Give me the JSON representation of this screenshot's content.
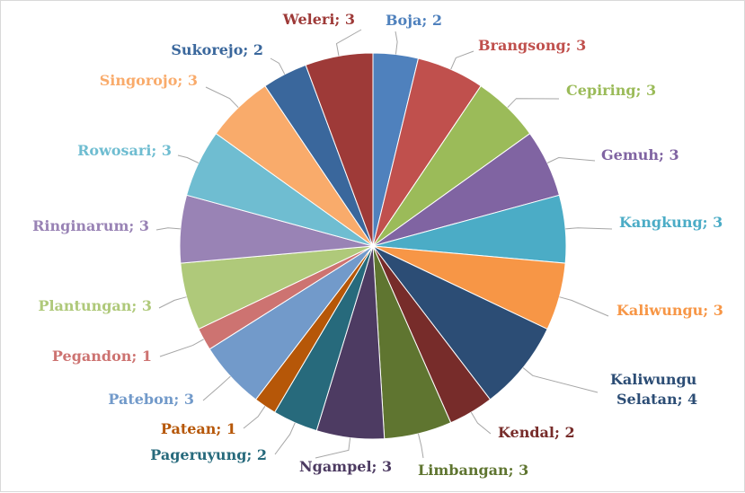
{
  "chart_data": {
    "type": "pie",
    "title": "",
    "slices": [
      {
        "category": "Boja",
        "value": 2,
        "label": "Boja; 2",
        "color": "#4F81BD"
      },
      {
        "category": "Brangsong",
        "value": 3,
        "label": "Brangsong; 3",
        "color": "#C0504D"
      },
      {
        "category": "Cepiring",
        "value": 3,
        "label": "Cepiring; 3",
        "color": "#9BBB59"
      },
      {
        "category": "Gemuh",
        "value": 3,
        "label": "Gemuh; 3",
        "color": "#8064A2"
      },
      {
        "category": "Kangkung",
        "value": 3,
        "label": "Kangkung; 3",
        "color": "#4BACC6"
      },
      {
        "category": "Kaliwungu",
        "value": 3,
        "label": "Kaliwungu; 3",
        "color": "#F79646"
      },
      {
        "category": "Kaliwungu Selatan",
        "value": 4,
        "label": [
          "Kaliwungu",
          "Selatan; 4"
        ],
        "color": "#2C4D75"
      },
      {
        "category": "Kendal",
        "value": 2,
        "label": "Kendal; 2",
        "color": "#772C2A"
      },
      {
        "category": "Limbangan",
        "value": 3,
        "label": "Limbangan; 3",
        "color": "#5F7530"
      },
      {
        "category": "Ngampel",
        "value": 3,
        "label": "Ngampel; 3",
        "color": "#4D3B62"
      },
      {
        "category": "Pageruyung",
        "value": 2,
        "label": "Pageruyung; 2",
        "color": "#276A7C"
      },
      {
        "category": "Patean",
        "value": 1,
        "label": "Patean; 1",
        "color": "#B65708"
      },
      {
        "category": "Patebon",
        "value": 3,
        "label": "Patebon; 3",
        "color": "#729ACA"
      },
      {
        "category": "Pegandon",
        "value": 1,
        "label": "Pegandon; 1",
        "color": "#CD7371"
      },
      {
        "category": "Plantungan",
        "value": 3,
        "label": "Plantungan; 3",
        "color": "#AFC97A"
      },
      {
        "category": "Ringinarum",
        "value": 3,
        "label": "Ringinarum; 3",
        "color": "#9983B5"
      },
      {
        "category": "Rowosari",
        "value": 3,
        "label": "Rowosari; 3",
        "color": "#6FBDD1"
      },
      {
        "category": "Singorojo",
        "value": 3,
        "label": "Singorojo; 3",
        "color": "#F9AB6B"
      },
      {
        "category": "Sukorejo",
        "value": 2,
        "label": "Sukorejo; 2",
        "color": "#3A679C"
      },
      {
        "category": "Weleri",
        "value": 3,
        "label": "Weleri; 3",
        "color": "#9E3A38"
      }
    ],
    "start_angle": "12 o'clock",
    "direction": "clockwise",
    "leader_line_color": "#a6a6a6",
    "slice_border_color": "#ffffff",
    "legend": "none"
  }
}
